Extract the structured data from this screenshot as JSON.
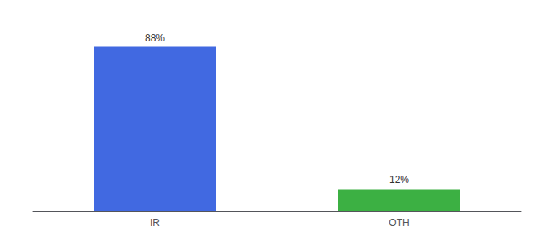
{
  "chart_data": {
    "type": "bar",
    "categories": [
      "IR",
      "OTH"
    ],
    "values": [
      88,
      12
    ],
    "value_labels": [
      "88%",
      "12%"
    ],
    "colors": [
      "#4169e1",
      "#3cb043"
    ],
    "ylim": [
      0,
      100
    ],
    "grid": false,
    "tick_labels": "x",
    "data_labels": true
  }
}
